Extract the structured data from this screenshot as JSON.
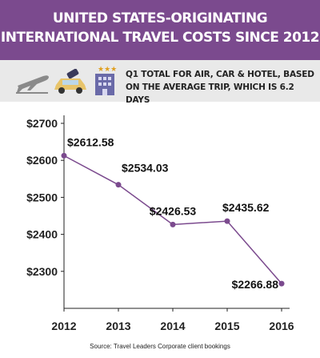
{
  "header": {
    "title_line1": "UNITED STATES-ORIGINATING",
    "title_line2": "INTERNATIONAL TRAVEL COSTS SINCE 2012",
    "bg_color": "#7b4a8e"
  },
  "subheader": {
    "line1": "Q1 TOTAL FOR AIR, CAR & HOTEL, BASED",
    "line2": "ON THE AVERAGE TRIP, WHICH IS 6.2 DAYS",
    "icons": [
      "airplane-icon",
      "car-icon",
      "hotel-icon"
    ]
  },
  "chart_data": {
    "type": "line",
    "x": [
      "2012",
      "2013",
      "2014",
      "2015",
      "2016"
    ],
    "values": [
      2612.58,
      2534.03,
      2426.53,
      2435.62,
      2266.88
    ],
    "data_labels": [
      "$2612.58",
      "$2534.03",
      "$2426.53",
      "$2435.62",
      "$2266.88"
    ],
    "yticks": [
      "$2700",
      "$2600",
      "$2500",
      "$2400",
      "$2300"
    ],
    "ytick_values": [
      2700,
      2600,
      2500,
      2400,
      2300
    ],
    "ylim": [
      2200,
      2700
    ],
    "line_color": "#7b4a8e",
    "grid": false
  },
  "source": "Source: Travel Leaders Corporate client bookings"
}
